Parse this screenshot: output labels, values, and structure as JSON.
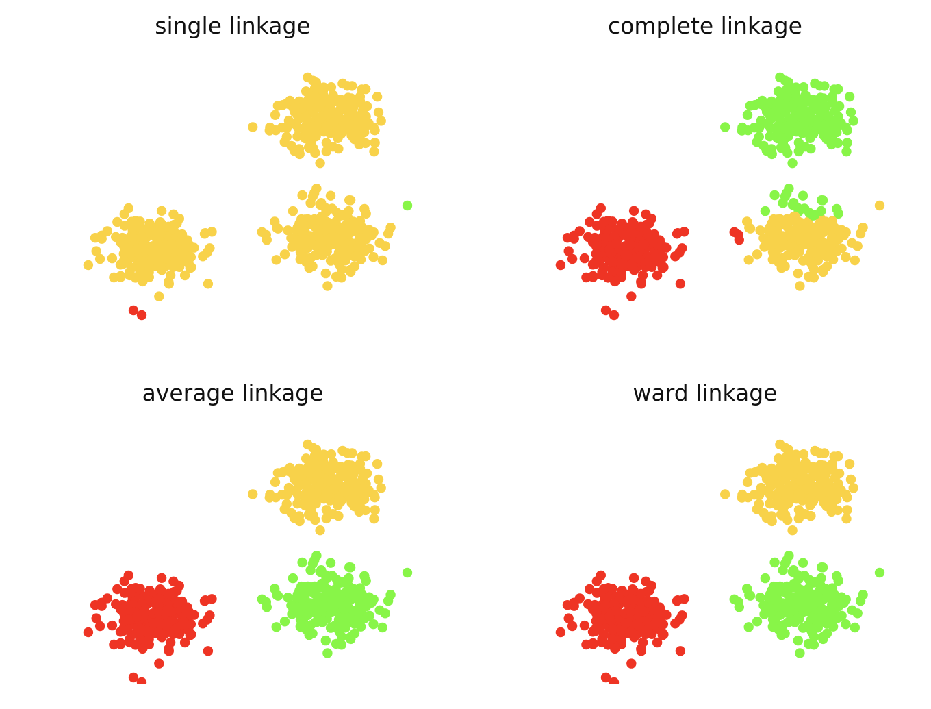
{
  "cluster_colors": {
    "yellow": "#f8d24a",
    "red": "#ee3424",
    "green": "#88f548"
  },
  "chart_data": [
    {
      "type": "scatter",
      "title": "single linkage",
      "xlim": [
        0,
        540
      ],
      "ylim": [
        0,
        380
      ],
      "grid": false,
      "axes_visible": false,
      "blobs": [
        {
          "cx": 130,
          "cy": 290,
          "sx": 55,
          "sy": 40,
          "n": 210,
          "seed": 11,
          "assign": {
            "default": "yellow"
          }
        },
        {
          "cx": 385,
          "cy": 270,
          "sx": 58,
          "sy": 38,
          "n": 210,
          "seed": 23,
          "assign": {
            "default": "yellow"
          }
        },
        {
          "cx": 380,
          "cy": 100,
          "sx": 55,
          "sy": 42,
          "n": 210,
          "seed": 37,
          "assign": {
            "default": "yellow"
          }
        }
      ],
      "outliers": [
        {
          "x": 100,
          "y": 378,
          "cluster": "red"
        },
        {
          "x": 112,
          "y": 385,
          "cluster": "red"
        },
        {
          "x": 500,
          "y": 225,
          "cluster": "green"
        }
      ]
    },
    {
      "type": "scatter",
      "title": "complete linkage",
      "xlim": [
        0,
        540
      ],
      "ylim": [
        0,
        380
      ],
      "grid": false,
      "axes_visible": false,
      "blobs": [
        {
          "cx": 130,
          "cy": 290,
          "sx": 55,
          "sy": 40,
          "n": 210,
          "seed": 11,
          "assign": {
            "default": "red"
          }
        },
        {
          "cx": 385,
          "cy": 270,
          "sx": 58,
          "sy": 38,
          "n": 210,
          "seed": 23,
          "assign": {
            "default": "yellow",
            "left_of": 300,
            "left_color": "red",
            "above": 240,
            "above_color": "green"
          }
        },
        {
          "cx": 380,
          "cy": 100,
          "sx": 55,
          "sy": 42,
          "n": 210,
          "seed": 37,
          "assign": {
            "default": "green"
          }
        }
      ],
      "outliers": [
        {
          "x": 100,
          "y": 378,
          "cluster": "red"
        },
        {
          "x": 112,
          "y": 385,
          "cluster": "red"
        },
        {
          "x": 500,
          "y": 225,
          "cluster": "yellow"
        }
      ]
    },
    {
      "type": "scatter",
      "title": "average linkage",
      "xlim": [
        0,
        540
      ],
      "ylim": [
        0,
        380
      ],
      "grid": false,
      "axes_visible": false,
      "blobs": [
        {
          "cx": 130,
          "cy": 290,
          "sx": 55,
          "sy": 40,
          "n": 210,
          "seed": 11,
          "assign": {
            "default": "red"
          }
        },
        {
          "cx": 385,
          "cy": 270,
          "sx": 58,
          "sy": 38,
          "n": 210,
          "seed": 23,
          "assign": {
            "default": "green"
          }
        },
        {
          "cx": 380,
          "cy": 100,
          "sx": 55,
          "sy": 42,
          "n": 210,
          "seed": 37,
          "assign": {
            "default": "yellow"
          }
        }
      ],
      "outliers": [
        {
          "x": 100,
          "y": 378,
          "cluster": "red"
        },
        {
          "x": 112,
          "y": 385,
          "cluster": "red"
        },
        {
          "x": 500,
          "y": 225,
          "cluster": "green"
        }
      ]
    },
    {
      "type": "scatter",
      "title": "ward linkage",
      "xlim": [
        0,
        540
      ],
      "ylim": [
        0,
        380
      ],
      "grid": false,
      "axes_visible": false,
      "blobs": [
        {
          "cx": 130,
          "cy": 290,
          "sx": 55,
          "sy": 40,
          "n": 210,
          "seed": 11,
          "assign": {
            "default": "red"
          }
        },
        {
          "cx": 385,
          "cy": 270,
          "sx": 58,
          "sy": 38,
          "n": 210,
          "seed": 23,
          "assign": {
            "default": "green"
          }
        },
        {
          "cx": 380,
          "cy": 100,
          "sx": 55,
          "sy": 42,
          "n": 210,
          "seed": 37,
          "assign": {
            "default": "yellow"
          }
        }
      ],
      "outliers": [
        {
          "x": 100,
          "y": 378,
          "cluster": "red"
        },
        {
          "x": 112,
          "y": 385,
          "cluster": "red"
        },
        {
          "x": 500,
          "y": 225,
          "cluster": "green"
        }
      ]
    }
  ]
}
